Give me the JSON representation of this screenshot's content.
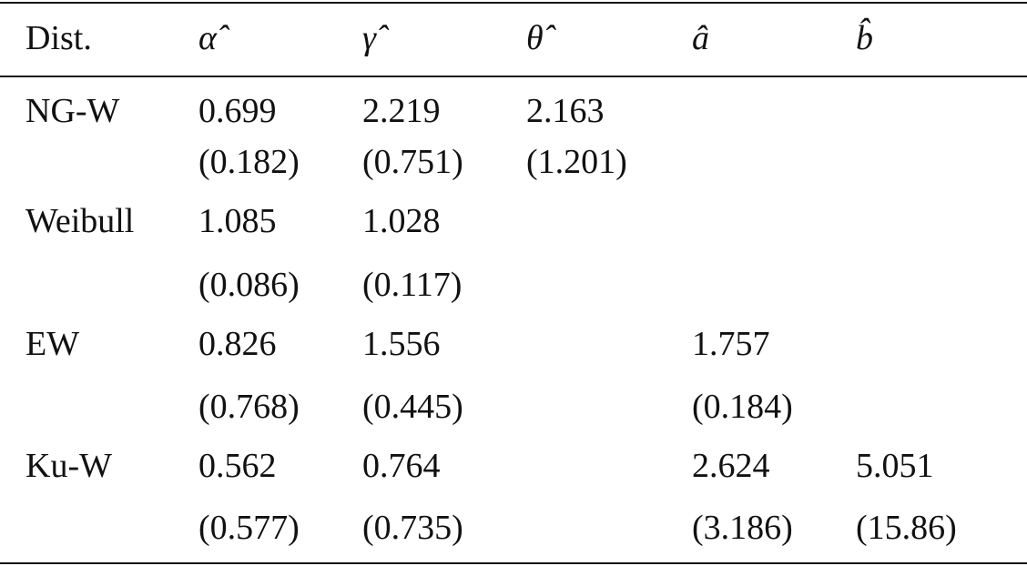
{
  "table": {
    "header": [
      "Dist.",
      "α̂",
      "γ̂",
      "θ̂",
      "â",
      "b̂"
    ],
    "rows": [
      [
        "NG-W",
        [
          "0.699",
          "(0.182)"
        ],
        [
          "2.219",
          "(0.751)"
        ],
        [
          "2.163",
          "(1.201)"
        ],
        null,
        null
      ],
      [
        "Weibull",
        [
          "1.085",
          "(0.086)"
        ],
        [
          "1.028",
          "(0.117)"
        ],
        null,
        null,
        null
      ],
      [
        "EW",
        [
          "0.826",
          "(0.768)"
        ],
        [
          "1.556",
          "(0.445)"
        ],
        null,
        [
          "1.757",
          "(0.184)"
        ],
        null
      ],
      [
        "Ku-W",
        [
          "0.562",
          "(0.577)"
        ],
        [
          "0.764",
          "(0.735)"
        ],
        null,
        [
          "2.624",
          "(3.186)"
        ],
        [
          "5.051",
          "(15.86)"
        ]
      ]
    ]
  }
}
